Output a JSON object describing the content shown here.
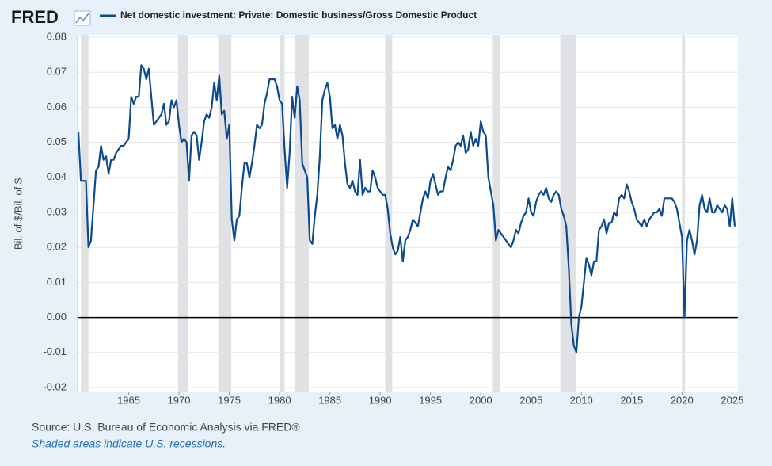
{
  "chart_data": {
    "type": "line",
    "brand": "FRED",
    "y_label": "Bil. of $/Bil. of $",
    "source": "Source: U.S. Bureau of Economic Analysis via FRED®",
    "note": "Shaded areas indicate U.S. recessions.",
    "xlim": [
      1960,
      2025.25
    ],
    "xticks": [
      1965,
      1970,
      1975,
      1980,
      1985,
      1990,
      1995,
      2000,
      2005,
      2010,
      2015,
      2020,
      2025
    ],
    "ylim": [
      -0.02,
      0.08
    ],
    "yticks": [
      {
        "value": -0.02,
        "label": "-0.02"
      },
      {
        "value": -0.01,
        "label": "-0.01"
      },
      {
        "value": 0,
        "label": "0.00"
      },
      {
        "value": 0.01,
        "label": "0.01"
      },
      {
        "value": 0.02,
        "label": "0.02"
      },
      {
        "value": 0.03,
        "label": "0.03"
      },
      {
        "value": 0.04,
        "label": "0.04"
      },
      {
        "value": 0.05,
        "label": "0.05"
      },
      {
        "value": 0.06,
        "label": "0.06"
      },
      {
        "value": 0.07,
        "label": "0.07"
      },
      {
        "value": 0.08,
        "label": "0.08"
      }
    ],
    "grid": true,
    "recessions": [
      [
        1960.25,
        1961.0
      ],
      [
        1969.9,
        1970.9
      ],
      [
        1973.9,
        1975.2
      ],
      [
        1980.0,
        1980.5
      ],
      [
        1981.5,
        1982.9
      ],
      [
        1990.5,
        1991.2
      ],
      [
        2001.2,
        2001.9
      ],
      [
        2007.9,
        2009.5
      ],
      [
        2020.0,
        2020.3
      ]
    ],
    "recession_color": "#dfe1e4",
    "x": [
      1960.0,
      1960.25,
      1960.75,
      1961.0,
      1961.25,
      1961.5,
      1961.75,
      1962.0,
      1962.25,
      1962.5,
      1962.75,
      1963.0,
      1963.25,
      1963.5,
      1963.75,
      1964.0,
      1964.25,
      1964.5,
      1964.75,
      1965.0,
      1965.25,
      1965.5,
      1965.75,
      1966.0,
      1966.25,
      1966.5,
      1966.75,
      1967.0,
      1967.25,
      1967.5,
      1967.75,
      1968.0,
      1968.25,
      1968.5,
      1968.75,
      1969.0,
      1969.25,
      1969.5,
      1969.75,
      1970.0,
      1970.25,
      1970.5,
      1970.75,
      1971.0,
      1971.25,
      1971.5,
      1971.75,
      1972.0,
      1972.25,
      1972.5,
      1972.75,
      1973.0,
      1973.25,
      1973.5,
      1973.75,
      1974.0,
      1974.25,
      1974.5,
      1974.75,
      1975.0,
      1975.25,
      1975.5,
      1975.75,
      1976.0,
      1976.25,
      1976.5,
      1976.75,
      1977.0,
      1977.25,
      1977.5,
      1977.75,
      1978.0,
      1978.25,
      1978.5,
      1978.75,
      1979.0,
      1979.25,
      1979.5,
      1979.75,
      1980.0,
      1980.25,
      1980.5,
      1980.75,
      1981.0,
      1981.25,
      1981.5,
      1981.75,
      1982.0,
      1982.25,
      1982.5,
      1982.75,
      1983.0,
      1983.25,
      1983.5,
      1983.75,
      1984.0,
      1984.25,
      1984.5,
      1984.75,
      1985.0,
      1985.25,
      1985.5,
      1985.75,
      1986.0,
      1986.25,
      1986.5,
      1986.75,
      1987.0,
      1987.25,
      1987.5,
      1987.75,
      1988.0,
      1988.25,
      1988.5,
      1988.75,
      1989.0,
      1989.25,
      1989.5,
      1989.75,
      1990.0,
      1990.25,
      1990.5,
      1990.75,
      1991.0,
      1991.25,
      1991.5,
      1991.75,
      1992.0,
      1992.25,
      1992.5,
      1992.75,
      1993.0,
      1993.25,
      1993.5,
      1993.75,
      1994.0,
      1994.25,
      1994.5,
      1994.75,
      1995.0,
      1995.25,
      1995.5,
      1995.75,
      1996.0,
      1996.25,
      1996.5,
      1996.75,
      1997.0,
      1997.25,
      1997.5,
      1997.75,
      1998.0,
      1998.25,
      1998.5,
      1998.75,
      1999.0,
      1999.25,
      1999.5,
      1999.75,
      2000.0,
      2000.25,
      2000.5,
      2000.75,
      2001.0,
      2001.25,
      2001.5,
      2001.75,
      2002.0,
      2002.25,
      2002.5,
      2002.75,
      2003.0,
      2003.25,
      2003.5,
      2003.75,
      2004.0,
      2004.25,
      2004.5,
      2004.75,
      2005.0,
      2005.25,
      2005.5,
      2005.75,
      2006.0,
      2006.25,
      2006.5,
      2006.75,
      2007.0,
      2007.25,
      2007.5,
      2007.75,
      2008.0,
      2008.25,
      2008.5,
      2008.75,
      2009.0,
      2009.25,
      2009.5,
      2009.75,
      2010.0,
      2010.25,
      2010.5,
      2010.75,
      2011.0,
      2011.25,
      2011.5,
      2011.75,
      2012.0,
      2012.25,
      2012.5,
      2012.75,
      2013.0,
      2013.25,
      2013.5,
      2013.75,
      2014.0,
      2014.25,
      2014.5,
      2014.75,
      2015.0,
      2015.25,
      2015.5,
      2015.75,
      2016.0,
      2016.25,
      2016.5,
      2016.75,
      2017.0,
      2017.25,
      2017.5,
      2017.75,
      2018.0,
      2018.25,
      2018.5,
      2018.75,
      2019.0,
      2019.25,
      2019.5,
      2019.75,
      2020.0,
      2020.25,
      2020.5,
      2020.75,
      2021.0,
      2021.25,
      2021.5,
      2021.75,
      2022.0,
      2022.25,
      2022.5,
      2022.75,
      2023.0,
      2023.25,
      2023.5,
      2023.75,
      2024.0,
      2024.25,
      2024.5,
      2024.75,
      2025.0,
      2025.25
    ],
    "series": [
      {
        "name": "Net domestic investment: Private: Domestic business/Gross Domestic Product",
        "color": "#0b4a8e",
        "values": [
          0.053,
          0.039,
          0.039,
          0.02,
          0.022,
          0.032,
          0.042,
          0.043,
          0.049,
          0.045,
          0.046,
          0.041,
          0.045,
          0.045,
          0.047,
          0.048,
          0.049,
          0.049,
          0.05,
          0.051,
          0.063,
          0.061,
          0.063,
          0.063,
          0.072,
          0.071,
          0.068,
          0.071,
          0.063,
          0.055,
          0.056,
          0.057,
          0.058,
          0.061,
          0.055,
          0.056,
          0.062,
          0.06,
          0.062,
          0.055,
          0.05,
          0.051,
          0.05,
          0.039,
          0.052,
          0.053,
          0.052,
          0.045,
          0.05,
          0.056,
          0.058,
          0.057,
          0.06,
          0.067,
          0.062,
          0.069,
          0.058,
          0.059,
          0.051,
          0.055,
          0.028,
          0.022,
          0.028,
          0.029,
          0.037,
          0.044,
          0.044,
          0.04,
          0.044,
          0.049,
          0.055,
          0.054,
          0.055,
          0.061,
          0.064,
          0.068,
          0.068,
          0.068,
          0.066,
          0.062,
          0.061,
          0.048,
          0.037,
          0.047,
          0.063,
          0.057,
          0.066,
          0.062,
          0.044,
          0.042,
          0.04,
          0.022,
          0.021,
          0.029,
          0.035,
          0.046,
          0.062,
          0.065,
          0.067,
          0.063,
          0.054,
          0.055,
          0.051,
          0.055,
          0.052,
          0.044,
          0.038,
          0.037,
          0.039,
          0.036,
          0.035,
          0.045,
          0.035,
          0.037,
          0.036,
          0.036,
          0.042,
          0.04,
          0.037,
          0.036,
          0.035,
          0.035,
          0.031,
          0.024,
          0.02,
          0.018,
          0.019,
          0.023,
          0.016,
          0.022,
          0.023,
          0.025,
          0.028,
          0.027,
          0.026,
          0.03,
          0.034,
          0.036,
          0.034,
          0.039,
          0.041,
          0.038,
          0.035,
          0.036,
          0.036,
          0.04,
          0.043,
          0.042,
          0.045,
          0.049,
          0.05,
          0.049,
          0.052,
          0.047,
          0.048,
          0.053,
          0.049,
          0.051,
          0.049,
          0.056,
          0.053,
          0.052,
          0.04,
          0.036,
          0.032,
          0.022,
          0.025,
          0.024,
          0.023,
          0.022,
          0.021,
          0.02,
          0.022,
          0.025,
          0.024,
          0.027,
          0.029,
          0.03,
          0.034,
          0.03,
          0.029,
          0.033,
          0.035,
          0.036,
          0.035,
          0.037,
          0.034,
          0.033,
          0.035,
          0.036,
          0.035,
          0.031,
          0.029,
          0.026,
          0.014,
          -0.002,
          -0.008,
          -0.01,
          0.0,
          0.003,
          0.01,
          0.017,
          0.015,
          0.012,
          0.016,
          0.016,
          0.025,
          0.026,
          0.028,
          0.024,
          0.027,
          0.027,
          0.03,
          0.029,
          0.034,
          0.035,
          0.034,
          0.038,
          0.036,
          0.033,
          0.031,
          0.028,
          0.027,
          0.026,
          0.028,
          0.026,
          0.028,
          0.029,
          0.03,
          0.03,
          0.031,
          0.029,
          0.034,
          0.034,
          0.034,
          0.034,
          0.033,
          0.031,
          0.027,
          0.023,
          0.0,
          0.022,
          0.025,
          0.022,
          0.018,
          0.022,
          0.032,
          0.035,
          0.031,
          0.03,
          0.034,
          0.03,
          0.03,
          0.032,
          0.031,
          0.03,
          0.032,
          0.031,
          0.026,
          0.034,
          0.026
        ]
      }
    ]
  }
}
